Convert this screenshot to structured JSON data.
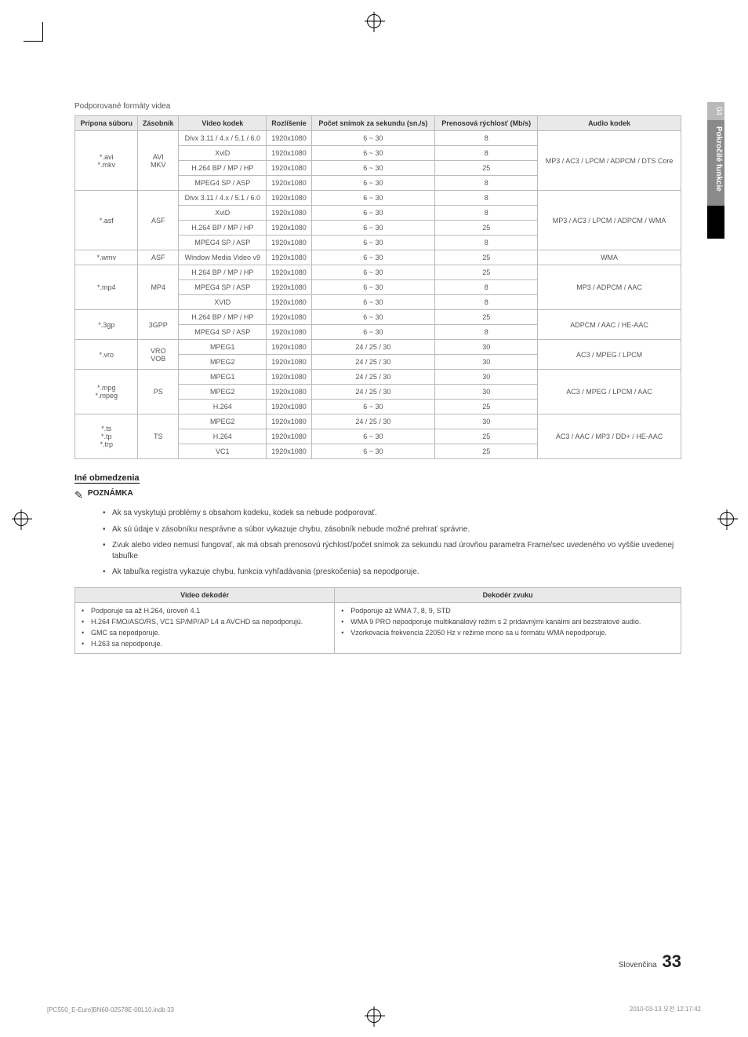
{
  "sideTab": {
    "num": "04",
    "label": "Pokročilé funkcie"
  },
  "caption": "Podporované formáty videa",
  "codecTable": {
    "headers": [
      "Prípona súboru",
      "Zásobník",
      "Video kodek",
      "Rozlíšenie",
      "Počet snímok za sekundu (sn./s)",
      "Prenosová rýchlosť (Mb/s)",
      "Audio kodek"
    ],
    "groups": [
      {
        "ext": "*.avi\n*.mkv",
        "container": "AVI\nMKV",
        "audio": "MP3 / AC3 / LPCM / ADPCM / DTS Core",
        "rows": [
          [
            "Divx 3.11 / 4.x / 5.1 / 6.0",
            "1920x1080",
            "6 ~ 30",
            "8"
          ],
          [
            "XviD",
            "1920x1080",
            "6 ~ 30",
            "8"
          ],
          [
            "H.264 BP / MP / HP",
            "1920x1080",
            "6 ~ 30",
            "25"
          ],
          [
            "MPEG4 SP / ASP",
            "1920x1080",
            "6 ~ 30",
            "8"
          ]
        ]
      },
      {
        "ext": "*.asf",
        "container": "ASF",
        "audio": "MP3 / AC3 / LPCM / ADPCM / WMA",
        "rows": [
          [
            "Divx 3.11 / 4.x / 5.1 / 6.0",
            "1920x1080",
            "6 ~ 30",
            "8"
          ],
          [
            "XviD",
            "1920x1080",
            "6 ~ 30",
            "8"
          ],
          [
            "H.264 BP / MP / HP",
            "1920x1080",
            "6 ~ 30",
            "25"
          ],
          [
            "MPEG4 SP / ASP",
            "1920x1080",
            "6 ~ 30",
            "8"
          ]
        ]
      },
      {
        "ext": "*.wmv",
        "container": "ASF",
        "audio": "WMA",
        "rows": [
          [
            "Window Media Video v9",
            "1920x1080",
            "6 ~ 30",
            "25"
          ]
        ]
      },
      {
        "ext": "*.mp4",
        "container": "MP4",
        "audio": "MP3 / ADPCM / AAC",
        "rows": [
          [
            "H.264 BP / MP / HP",
            "1920x1080",
            "6 ~ 30",
            "25"
          ],
          [
            "MPEG4 SP / ASP",
            "1920x1080",
            "6 ~ 30",
            "8"
          ],
          [
            "XVID",
            "1920x1080",
            "6 ~ 30",
            "8"
          ]
        ]
      },
      {
        "ext": "*.3gp",
        "container": "3GPP",
        "audio": "ADPCM / AAC / HE-AAC",
        "rows": [
          [
            "H.264 BP / MP / HP",
            "1920x1080",
            "6 ~ 30",
            "25"
          ],
          [
            "MPEG4 SP / ASP",
            "1920x1080",
            "6 ~ 30",
            "8"
          ]
        ]
      },
      {
        "ext": "*.vro",
        "container": "VRO\nVOB",
        "audio": "AC3 / MPEG / LPCM",
        "rows": [
          [
            "MPEG1",
            "1920x1080",
            "24 / 25 / 30",
            "30"
          ],
          [
            "MPEG2",
            "1920x1080",
            "24 / 25 / 30",
            "30"
          ]
        ]
      },
      {
        "ext": "*.mpg\n*.mpeg",
        "container": "PS",
        "audio": "AC3 / MPEG / LPCM / AAC",
        "rows": [
          [
            "MPEG1",
            "1920x1080",
            "24 / 25 / 30",
            "30"
          ],
          [
            "MPEG2",
            "1920x1080",
            "24 / 25 / 30",
            "30"
          ],
          [
            "H.264",
            "1920x1080",
            "6 ~ 30",
            "25"
          ]
        ]
      },
      {
        "ext": "*.ts\n*.tp\n*.trp",
        "container": "TS",
        "audio": "AC3 / AAC / MP3 / DD+ / HE-AAC",
        "rows": [
          [
            "MPEG2",
            "1920x1080",
            "24 / 25 / 30",
            "30"
          ],
          [
            "H.264",
            "1920x1080",
            "6 ~ 30",
            "25"
          ],
          [
            "VC1",
            "1920x1080",
            "6 ~ 30",
            "25"
          ]
        ]
      }
    ]
  },
  "limitTitle": "Iné obmedzenia",
  "noteLabel": "POZNÁMKA",
  "bullets": [
    "Ak sa vyskytujú problémy s obsahom kodeku, kodek sa nebude podporovať.",
    "Ak sú údaje v zásobníku nesprávne a súbor vykazuje chybu, zásobník nebude možné prehrať správne.",
    "Zvuk alebo video nemusí fungovať, ak má obsah prenosovú rýchlosť/počet snímok za sekundu nad úrovňou parametra Frame/sec uvedeného vo vyššie uvedenej tabuľke",
    "Ak tabuľka registra vykazuje chybu, funkcia vyhľadávania (preskočenia) sa nepodporuje."
  ],
  "decoderTable": {
    "headers": [
      "Video dekodér",
      "Dekodér zvuku"
    ],
    "video": [
      "Podporuje sa až H.264, úroveň 4.1",
      "H.264 FMO/ASO/RS, VC1 SP/MP/AP L4 a AVCHD sa nepodporujú.",
      "GMC sa nepodporuje.",
      "H.263 sa nepodporuje."
    ],
    "audio": [
      "Podporuje až WMA 7, 8, 9, STD",
      "WMA 9 PRO nepodporuje multikanálový režim s 2 prídavnými kanálmi ani bezstratové audio.",
      "Vzorkovacia frekvencia 22050 Hz v režime mono sa u formátu WMA nepodporuje."
    ]
  },
  "footer": {
    "lang": "Slovenčina",
    "page": "33"
  },
  "printLeft": "[PC550_E-Euro]BN68-02578E-00L10.indb   33",
  "printRight": "2010-03-13   오전 12:17:42"
}
